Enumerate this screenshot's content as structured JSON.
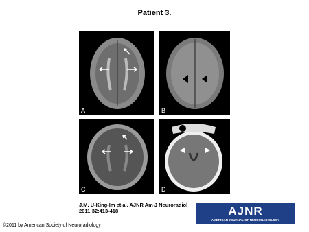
{
  "header": {
    "title": "Patient 3."
  },
  "panels": [
    {
      "label": "A"
    },
    {
      "label": "B"
    },
    {
      "label": "C"
    },
    {
      "label": "D"
    }
  ],
  "citation": "J.M. U-King-Im et al. AJNR Am J Neuroradiol 2011;32:413-418",
  "logo": {
    "title": "AJNR",
    "subtitle": "AMERICAN JOURNAL OF NEURORADIOLOGY"
  },
  "footer": "©2011 by American Society of Neuroradiology"
}
